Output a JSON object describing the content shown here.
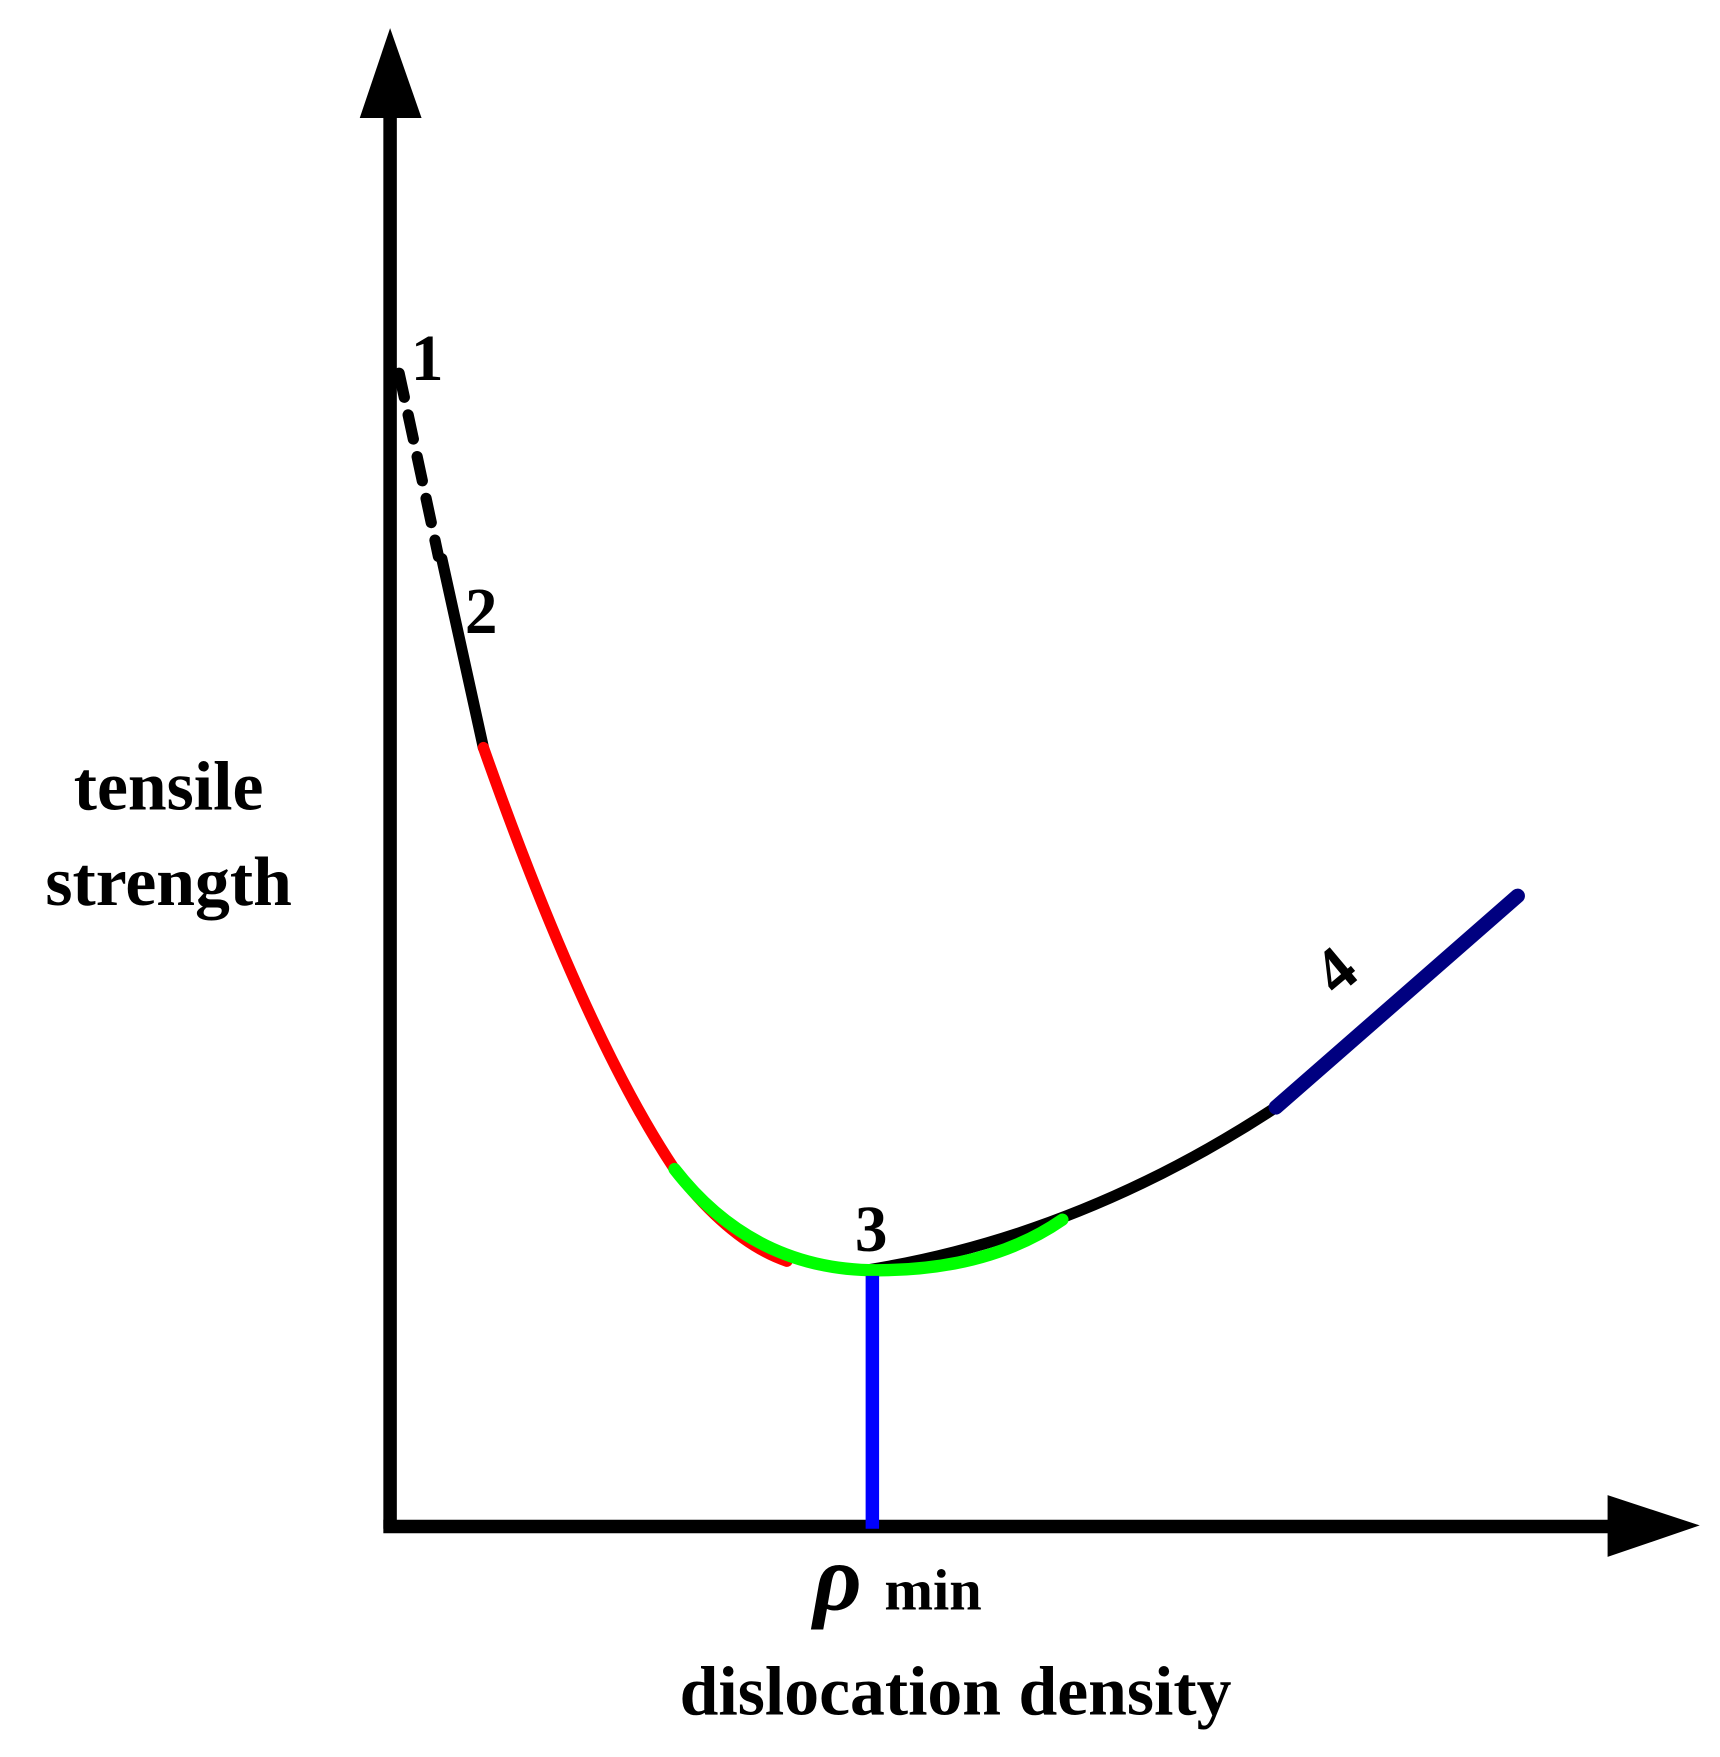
{
  "y_axis_label": [
    "tensile",
    "strength"
  ],
  "x_axis_label": "dislocation density",
  "x_marker": {
    "symbol": "ρ",
    "subscript": "min"
  },
  "point_labels": [
    "1",
    "2",
    "3",
    "4"
  ]
}
